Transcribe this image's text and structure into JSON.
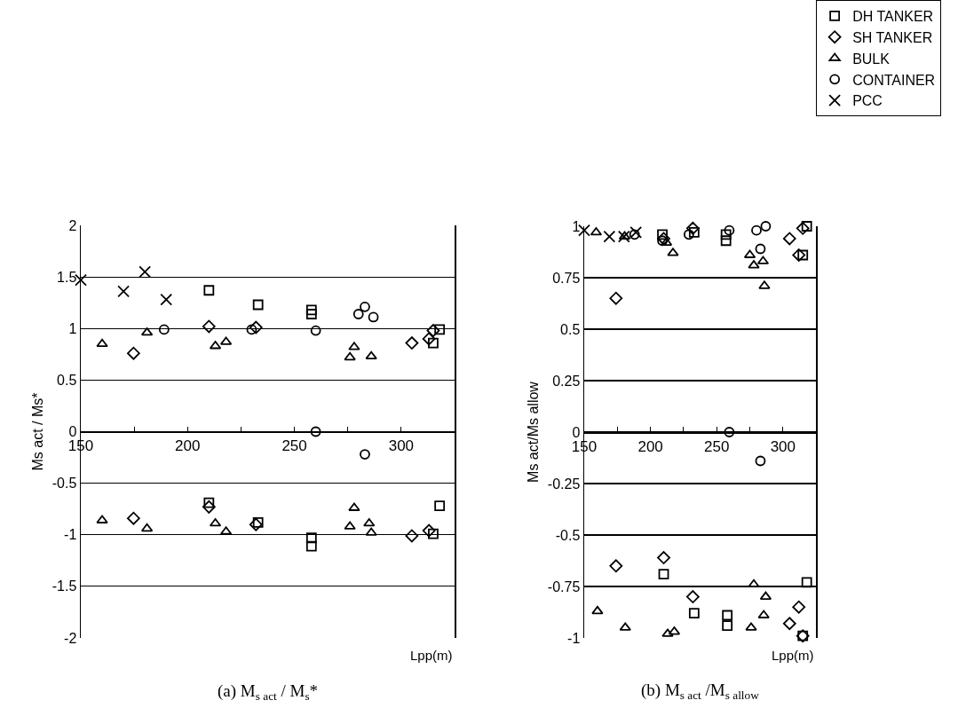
{
  "chart_data": [
    {
      "type": "scatter",
      "ylabel": "Ms act / Ms*",
      "xlabel": "Lpp(m)",
      "annotations": [
        "(a) M$_{s act}$ / M$_{s}$*"
      ],
      "xlim": [
        150,
        325
      ],
      "xticks": [
        150,
        {
          "value": 175,
          "label": null
        },
        200,
        {
          "value": 225,
          "label": null
        },
        250,
        {
          "value": 275,
          "label": null
        },
        300
      ],
      "ylim": [
        -2,
        2
      ],
      "yticks": [
        -2,
        -1.5,
        -1,
        -0.5,
        0,
        0.5,
        1,
        1.5,
        2
      ],
      "grid": "y",
      "legend": false,
      "series": [
        {
          "marker": "square",
          "color": "#000000",
          "x": [
            210,
            233,
            258,
            258,
            318,
            315,
            210,
            233,
            258,
            258,
            318,
            315
          ],
          "values": [
            1.37,
            1.23,
            1.18,
            1.14,
            0.99,
            0.86,
            -0.69,
            -0.88,
            -1.03,
            -1.11,
            -0.72,
            -0.99
          ]
        },
        {
          "marker": "diamond",
          "color": "#000000",
          "x": [
            174.7,
            210,
            232,
            305,
            313,
            315,
            174.7,
            210,
            232,
            305,
            313
          ],
          "values": [
            0.76,
            1.02,
            1.01,
            0.86,
            0.9,
            0.98,
            -0.84,
            -0.73,
            -0.9,
            -1.01,
            -0.96
          ]
        },
        {
          "marker": "triangle",
          "color": "#000000",
          "x": [
            160,
            181,
            213,
            218,
            278,
            276,
            286,
            160,
            181,
            213,
            218,
            276,
            278,
            285,
            286
          ],
          "values": [
            0.85,
            0.96,
            0.83,
            0.87,
            0.82,
            0.72,
            0.73,
            -0.86,
            -0.94,
            -0.89,
            -0.97,
            -0.92,
            -0.74,
            -0.89,
            -0.98
          ]
        },
        {
          "marker": "circle",
          "color": "#000000",
          "x": [
            189,
            230,
            260,
            280,
            283,
            287,
            260,
            283
          ],
          "values": [
            0.99,
            0.99,
            0.98,
            1.14,
            1.21,
            1.11,
            0,
            -0.22
          ]
        },
        {
          "marker": "cross",
          "color": "#000000",
          "x": [
            150,
            170,
            180,
            190
          ],
          "values": [
            1.47,
            1.36,
            1.55,
            1.28
          ]
        }
      ]
    },
    {
      "type": "scatter",
      "ylabel": "Ms act/Ms allow",
      "xlabel": "Lpp(m)",
      "annotations": [
        "(b) M$_{s act}$ /M$_{s allow}$"
      ],
      "xlim": [
        150,
        325
      ],
      "xticks": [
        150,
        {
          "value": 175,
          "label": null
        },
        200,
        {
          "value": 225,
          "label": null
        },
        250,
        {
          "value": 275,
          "label": null
        },
        300
      ],
      "ylim": [
        -1,
        1
      ],
      "yticks": [
        -1,
        -0.75,
        -0.5,
        -0.25,
        0,
        0.25,
        0.5,
        0.75,
        1
      ],
      "grid": "y",
      "legend": "top right",
      "series": [
        {
          "name": "DH TANKER",
          "marker": "square",
          "color": "#000000",
          "x": [
            209,
            233,
            257,
            257,
            315,
            318,
            210,
            233,
            258,
            258,
            318,
            315
          ],
          "values": [
            0.96,
            0.97,
            0.96,
            0.93,
            0.86,
            1.0,
            -0.69,
            -0.88,
            -0.89,
            -0.94,
            -0.73,
            -0.99
          ]
        },
        {
          "name": "SH TANKER",
          "marker": "diamond",
          "color": "#000000",
          "x": [
            174,
            210,
            232,
            305,
            312,
            315,
            174,
            210,
            232,
            305,
            312,
            315
          ],
          "values": [
            0.65,
            0.94,
            0.99,
            0.94,
            0.86,
            0.99,
            -0.65,
            -0.61,
            -0.8,
            -0.93,
            -0.85,
            -0.99
          ]
        },
        {
          "name": "BULK",
          "marker": "triangle",
          "color": "#000000",
          "x": [
            159,
            180.5,
            212,
            217,
            275,
            278,
            285,
            286,
            160,
            181,
            213,
            218,
            276,
            278,
            285.5,
            287
          ],
          "values": [
            0.97,
            0.95,
            0.92,
            0.87,
            0.86,
            0.81,
            0.83,
            0.71,
            -0.87,
            -0.95,
            -0.98,
            -0.97,
            -0.95,
            -0.74,
            -0.89,
            -0.8
          ]
        },
        {
          "name": "CONTAINER",
          "marker": "circle",
          "color": "#000000",
          "x": [
            188,
            209,
            229,
            259.5,
            280,
            283,
            287,
            259.5,
            283
          ],
          "values": [
            0.96,
            0.93,
            0.96,
            0.98,
            0.98,
            0.89,
            1.0,
            0,
            -0.14
          ]
        },
        {
          "name": "PCC",
          "marker": "cross",
          "color": "#000000",
          "x": [
            150,
            169,
            180,
            189
          ],
          "values": [
            0.98,
            0.95,
            0.95,
            0.97
          ]
        }
      ]
    }
  ]
}
